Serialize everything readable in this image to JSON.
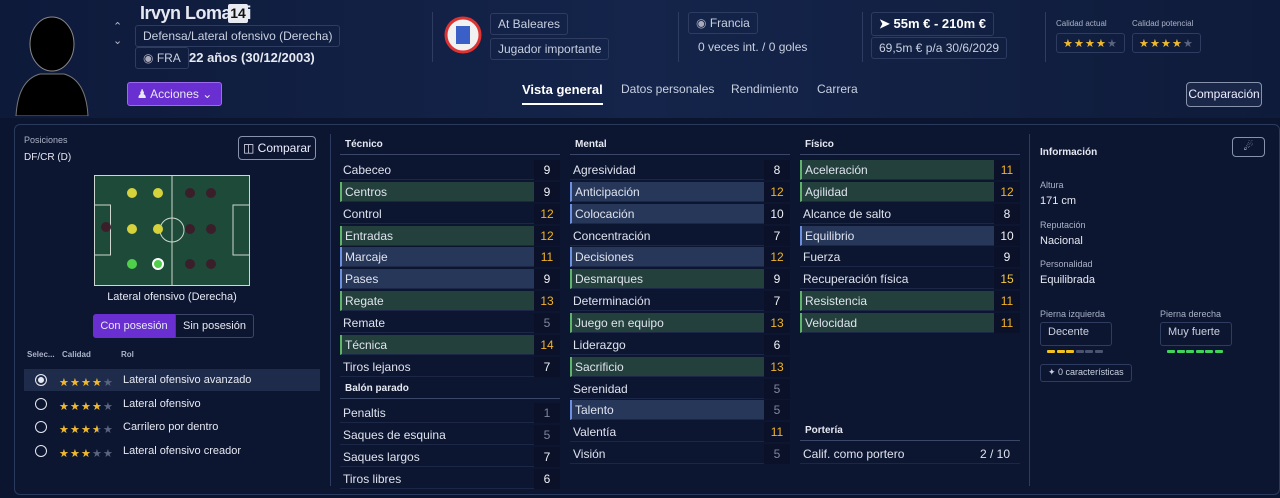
{
  "player": {
    "name": "Irvyn Lomami",
    "number": 14,
    "position": "Defensa/Lateral ofensivo (Derecha)",
    "nationality_code": "FRA",
    "age": "22 años (30/12/2003)"
  },
  "club": {
    "name": "At Baleares",
    "status": "Jugador importante"
  },
  "nation": {
    "name": "Francia",
    "caps": "0 veces int. / 0 goles"
  },
  "value": {
    "range": "55m € - 210m €",
    "wage": "69,5m € p/a",
    "contract": "30/6/2029"
  },
  "quality": {
    "current_label": "Calidad actual",
    "current_stars": 4,
    "potential_label": "Calidad potencial",
    "potential_stars": 4
  },
  "actions": "Acciones",
  "tabs": [
    "Vista general",
    "Datos personales",
    "Rendimiento",
    "Carrera"
  ],
  "compare_button": "Comparación",
  "positions": {
    "label": "Posiciones",
    "code": "DF/CR (D)",
    "compare": "Comparar",
    "selected_role": "Lateral ofensivo (Derecha)",
    "toggles": [
      "Con posesión",
      "Sin posesión"
    ],
    "columns": [
      "Selec...",
      "Calidad",
      "Rol"
    ],
    "roles": [
      {
        "name": "Lateral ofensivo avanzado",
        "stars": 4
      },
      {
        "name": "Lateral ofensivo",
        "stars": 4
      },
      {
        "name": "Carrilero por dentro",
        "stars": 3.5
      },
      {
        "name": "Lateral ofensivo creador",
        "stars": 3
      }
    ]
  },
  "attributes": {
    "technical": {
      "title": "Técnico",
      "rows": [
        {
          "name": "Cabeceo",
          "value": 9
        },
        {
          "name": "Centros",
          "value": 9,
          "highlight": "green"
        },
        {
          "name": "Control",
          "value": 12
        },
        {
          "name": "Entradas",
          "value": 12,
          "highlight": "green"
        },
        {
          "name": "Marcaje",
          "value": 11,
          "highlight": "blue"
        },
        {
          "name": "Pases",
          "value": 9,
          "highlight": "blue"
        },
        {
          "name": "Regate",
          "value": 13,
          "highlight": "green"
        },
        {
          "name": "Remate",
          "value": 5
        },
        {
          "name": "Técnica",
          "value": 14,
          "highlight": "green"
        },
        {
          "name": "Tiros lejanos",
          "value": 7
        }
      ]
    },
    "set_pieces": {
      "title": "Balón parado",
      "rows": [
        {
          "name": "Penaltis",
          "value": 1
        },
        {
          "name": "Saques de esquina",
          "value": 5
        },
        {
          "name": "Saques largos",
          "value": 7
        },
        {
          "name": "Tiros libres",
          "value": 6
        }
      ]
    },
    "mental": {
      "title": "Mental",
      "rows": [
        {
          "name": "Agresividad",
          "value": 8
        },
        {
          "name": "Anticipación",
          "value": 12,
          "highlight": "blue"
        },
        {
          "name": "Colocación",
          "value": 10,
          "highlight": "blue"
        },
        {
          "name": "Concentración",
          "value": 7
        },
        {
          "name": "Decisiones",
          "value": 12,
          "highlight": "blue"
        },
        {
          "name": "Desmarques",
          "value": 9,
          "highlight": "green"
        },
        {
          "name": "Determinación",
          "value": 7
        },
        {
          "name": "Juego en equipo",
          "value": 13,
          "highlight": "green"
        },
        {
          "name": "Liderazgo",
          "value": 6
        },
        {
          "name": "Sacrificio",
          "value": 13,
          "highlight": "green"
        },
        {
          "name": "Serenidad",
          "value": 5
        },
        {
          "name": "Talento",
          "value": 5,
          "highlight": "blue"
        },
        {
          "name": "Valentía",
          "value": 11
        },
        {
          "name": "Visión",
          "value": 5
        }
      ]
    },
    "physical": {
      "title": "Físico",
      "rows": [
        {
          "name": "Aceleración",
          "value": 11,
          "highlight": "green"
        },
        {
          "name": "Agilidad",
          "value": 12,
          "highlight": "green"
        },
        {
          "name": "Alcance de salto",
          "value": 8
        },
        {
          "name": "Equilibrio",
          "value": 10,
          "highlight": "blue"
        },
        {
          "name": "Fuerza",
          "value": 9
        },
        {
          "name": "Recuperación física",
          "value": 15
        },
        {
          "name": "Resistencia",
          "value": 11,
          "highlight": "green"
        },
        {
          "name": "Velocidad",
          "value": 11,
          "highlight": "green"
        }
      ]
    },
    "goalkeeping": {
      "title": "Portería",
      "rows": [
        {
          "name": "Calif. como portero",
          "value": "2 / 10"
        }
      ]
    }
  },
  "info": {
    "title": "Información",
    "fields": [
      {
        "label": "Altura",
        "value": "171 cm"
      },
      {
        "label": "Reputación",
        "value": "Nacional"
      },
      {
        "label": "Personalidad",
        "value": "Equilibrada"
      }
    ],
    "left_foot": {
      "label": "Pierna izquierda",
      "value": "Decente",
      "level": 3
    },
    "right_foot": {
      "label": "Pierna derecha",
      "value": "Muy fuerte",
      "level": 6
    },
    "traits": "0 características"
  }
}
